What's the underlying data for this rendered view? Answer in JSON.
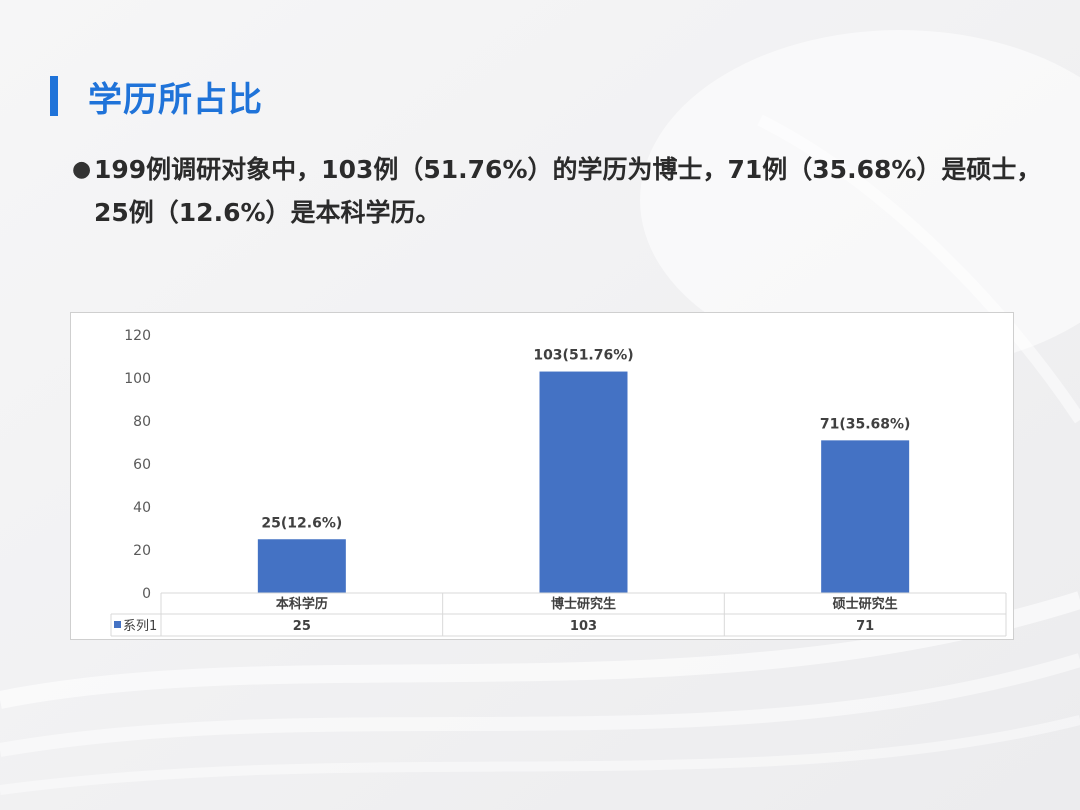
{
  "page": {
    "title": "学历所占比",
    "summary": "199例调研对象中，103例（51.76%）的学历为博士，71例（35.68%）是硕士，25例（12.6%）是本科学历。",
    "accent_color": "#1f73d9",
    "bullet": "●"
  },
  "chart_data": {
    "type": "bar",
    "categories": [
      "本科学历",
      "博士研究生",
      "硕士研究生"
    ],
    "series": [
      {
        "name": "系列1",
        "values": [
          25,
          103,
          71
        ],
        "data_labels": [
          "25(12.6%)",
          "103(51.76%)",
          "71(35.68%)"
        ],
        "table_values": [
          "25",
          "103",
          "71"
        ],
        "color": "#4472c4"
      }
    ],
    "y_ticks": [
      "0",
      "20",
      "40",
      "60",
      "80",
      "100",
      "120"
    ],
    "ylim": [
      0,
      120
    ],
    "grid": false,
    "legend": "data-table",
    "data_table": true
  }
}
